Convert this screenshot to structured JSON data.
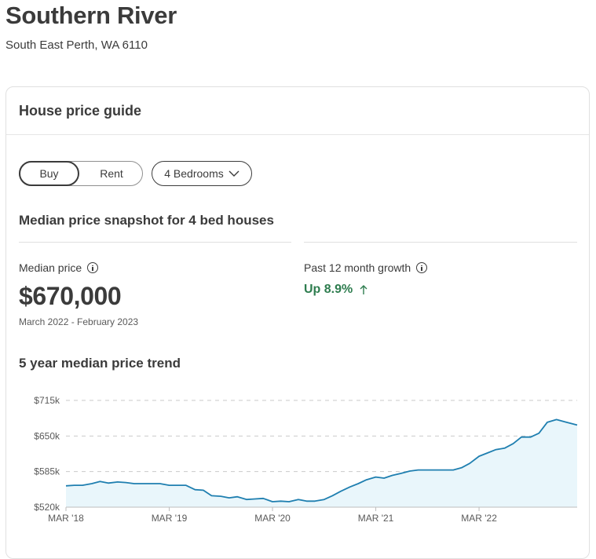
{
  "suburb": {
    "title": "Southern River",
    "subtitle": "South East Perth, WA 6110"
  },
  "card": {
    "title": "House price guide"
  },
  "filters": {
    "buy_label": "Buy",
    "rent_label": "Rent",
    "bedrooms_label": "4 Bedrooms",
    "selected_mode": "Buy"
  },
  "snapshot": {
    "title": "Median price snapshot for 4 bed houses",
    "median_label": "Median price",
    "median_value": "$670,000",
    "median_period": "March 2022 - February 2023",
    "growth_label": "Past 12 month growth",
    "growth_value": "Up 8.9%"
  },
  "trend": {
    "title": "5 year median price trend"
  },
  "colors": {
    "line": "#1f7fb0",
    "area": "#e9f6fb",
    "growth": "#2e7d4f",
    "text": "#3b3b3b"
  },
  "icons": {
    "info": "info-circle-icon",
    "chevron": "chevron-down-icon",
    "arrow": "arrow-up-icon"
  },
  "chart_data": {
    "type": "area",
    "title": "",
    "xlabel": "",
    "ylabel": "",
    "ylim": [
      520,
      715
    ],
    "y_ticks": [
      {
        "value": 715,
        "label": "$715k"
      },
      {
        "value": 650,
        "label": "$650k"
      },
      {
        "value": 585,
        "label": "$585k"
      },
      {
        "value": 520,
        "label": "$520k"
      }
    ],
    "x_ticks": [
      {
        "value": 2018.17,
        "label": "MAR '18"
      },
      {
        "value": 2019.17,
        "label": "MAR '19"
      },
      {
        "value": 2020.17,
        "label": "MAR '20"
      },
      {
        "value": 2021.17,
        "label": "MAR '21"
      },
      {
        "value": 2022.17,
        "label": "MAR '22"
      }
    ],
    "xlim": [
      2018.17,
      2023.12
    ],
    "grid": true,
    "series": [
      {
        "x": [
          2018.17,
          2018.25,
          2018.33,
          2018.42,
          2018.5,
          2018.58,
          2018.67,
          2018.75,
          2018.83,
          2018.92,
          2019.0,
          2019.08,
          2019.17,
          2019.25,
          2019.33,
          2019.42,
          2019.5,
          2019.58,
          2019.67,
          2019.75,
          2019.83,
          2019.92,
          2020.0,
          2020.08,
          2020.17,
          2020.25,
          2020.33,
          2020.42,
          2020.5,
          2020.58,
          2020.67,
          2020.75,
          2020.83,
          2020.92,
          2021.0,
          2021.08,
          2021.17,
          2021.25,
          2021.33,
          2021.42,
          2021.5,
          2021.58,
          2021.67,
          2021.75,
          2021.83,
          2021.92,
          2022.0,
          2022.08,
          2022.17,
          2022.25,
          2022.33,
          2022.42,
          2022.5,
          2022.58,
          2022.67,
          2022.75,
          2022.83,
          2022.92,
          2023.0,
          2023.12
        ],
        "values": [
          559,
          560,
          560,
          563,
          567,
          564,
          566,
          565,
          563,
          563,
          563,
          563,
          560,
          560,
          560,
          552,
          551,
          541,
          540,
          537,
          539,
          534,
          535,
          536,
          530,
          531,
          530,
          534,
          531,
          531,
          534,
          541,
          549,
          557,
          563,
          570,
          575,
          573,
          578,
          582,
          586,
          588,
          588,
          588,
          588,
          588,
          592,
          600,
          613,
          619,
          625,
          628,
          636,
          648,
          648,
          655,
          675,
          680,
          676,
          670
        ]
      }
    ]
  }
}
